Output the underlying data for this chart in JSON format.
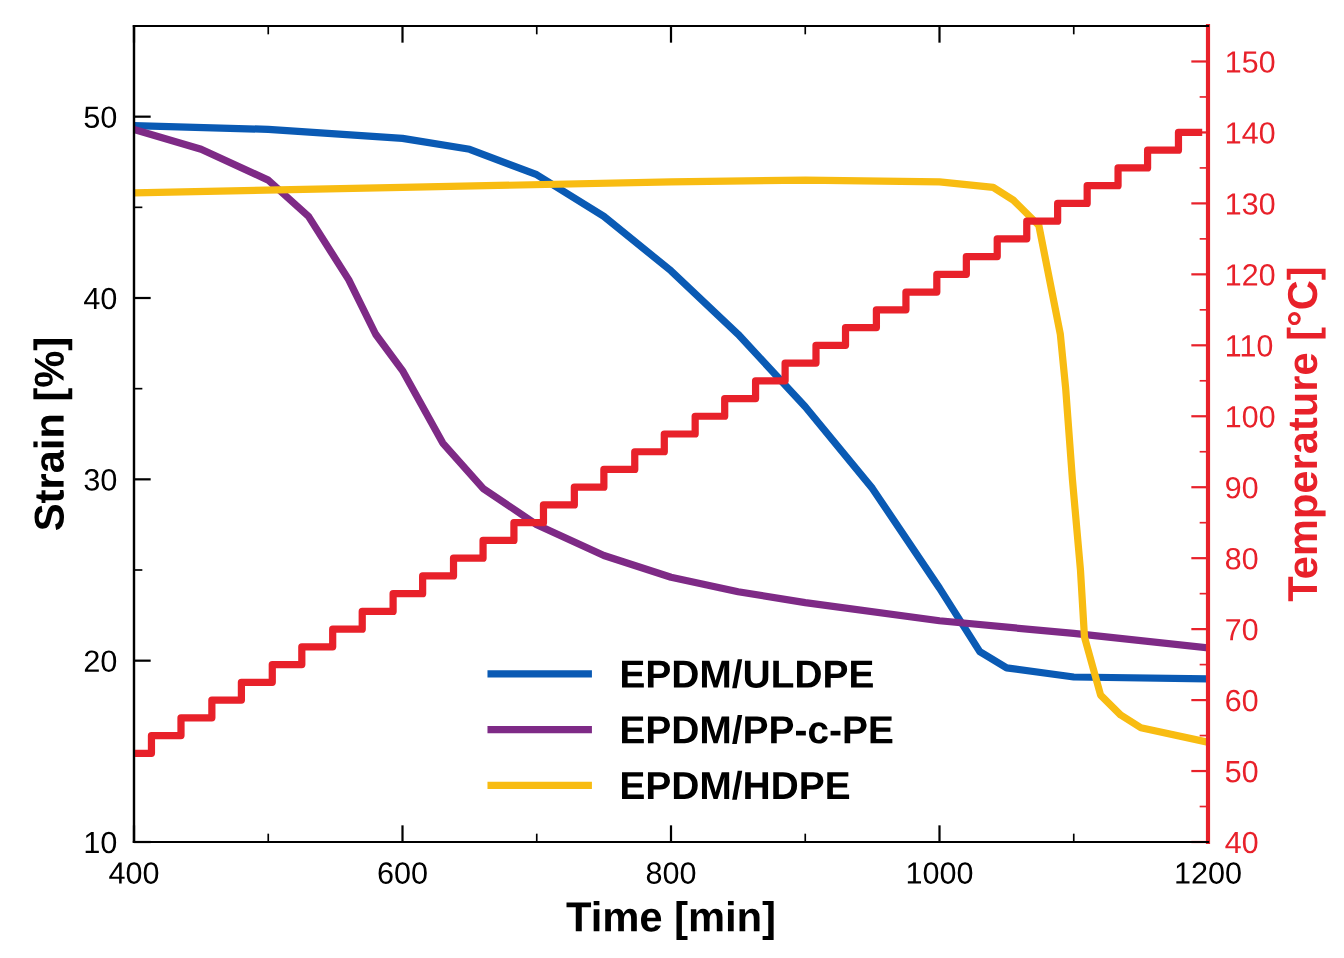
{
  "chart_data": {
    "type": "line",
    "xlabel": "Time [min]",
    "ylabel": "Strain [%]",
    "y2label": "Temperature [°C]",
    "xlim": [
      400,
      1200
    ],
    "xticks": [
      400,
      600,
      800,
      1000,
      1200
    ],
    "ylim": [
      10,
      55
    ],
    "yticks": [
      10,
      20,
      30,
      40,
      50
    ],
    "y2lim": [
      40,
      155
    ],
    "y2ticks": [
      40,
      50,
      60,
      70,
      80,
      90,
      100,
      110,
      120,
      130,
      140,
      150
    ],
    "legend": "bottom",
    "grid": false,
    "marker": "none",
    "line_style": "solid",
    "series": [
      {
        "name": "EPDM/ULDPE",
        "color": "#0a5ab4",
        "x": [
          400,
          500,
          600,
          650,
          700,
          750,
          800,
          850,
          900,
          950,
          1000,
          1030,
          1050,
          1100,
          1200
        ],
        "values": [
          49.5,
          49.3,
          48.8,
          48.2,
          46.8,
          44.5,
          41.5,
          38,
          34,
          29.5,
          24,
          20.5,
          19.6,
          19.1,
          19
        ]
      },
      {
        "name": "EPDM/PP-c-PE",
        "color": "#7e2a86",
        "x": [
          400,
          450,
          500,
          530,
          560,
          580,
          600,
          630,
          660,
          700,
          750,
          800,
          850,
          900,
          1000,
          1100,
          1200
        ],
        "values": [
          49.3,
          48.2,
          46.5,
          44.5,
          41,
          38,
          36,
          32,
          29.5,
          27.5,
          25.8,
          24.6,
          23.8,
          23.2,
          22.2,
          21.5,
          20.7
        ]
      },
      {
        "name": "EPDM/HDPE",
        "color": "#f8bc12",
        "x": [
          400,
          600,
          800,
          900,
          1000,
          1040,
          1055,
          1074,
          1090,
          1094,
          1099,
          1105,
          1108,
          1120,
          1135,
          1150,
          1200
        ],
        "values": [
          45.8,
          46.1,
          46.4,
          46.5,
          46.4,
          46.1,
          45.4,
          44,
          38,
          35,
          30,
          25,
          21.3,
          18.1,
          17,
          16.3,
          15.5
        ]
      },
      {
        "type": "step",
        "axis": "y2",
        "color": "#e8212a",
        "x": [
          400,
          413,
          435,
          458,
          480,
          503,
          525,
          548,
          570,
          593,
          615,
          638,
          660,
          683,
          705,
          728,
          750,
          773,
          795,
          818,
          840,
          863,
          885,
          908,
          930,
          953,
          975,
          998,
          1020,
          1043,
          1065,
          1088,
          1110,
          1133,
          1155,
          1178,
          1193
        ],
        "values": [
          52.5,
          55,
          57.5,
          60,
          62.5,
          65,
          67.5,
          70,
          72.5,
          75,
          77.5,
          80,
          82.5,
          85,
          87.5,
          90,
          92.5,
          95,
          97.5,
          100,
          102.5,
          105,
          107.5,
          110,
          112.5,
          115,
          117.5,
          120,
          122.5,
          125,
          127.5,
          130,
          132.5,
          135,
          137.5,
          140,
          140
        ]
      }
    ]
  }
}
